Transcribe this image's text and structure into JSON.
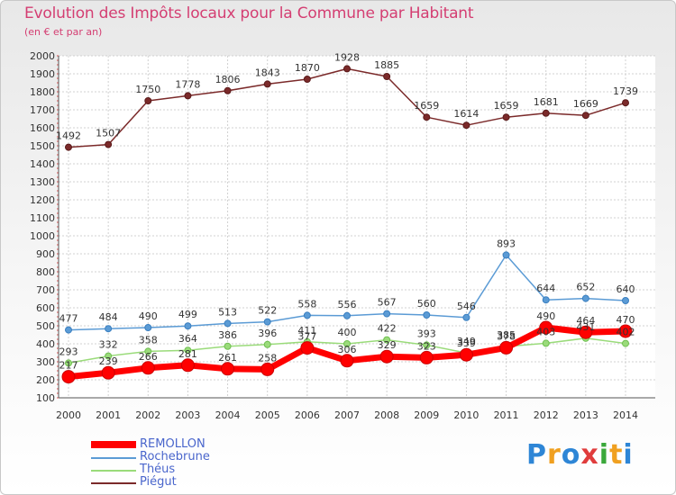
{
  "chart_data": {
    "type": "line",
    "title": "Evolution des Impôts locaux pour la Commune par Habitant",
    "subtitle": "(en € et par an)",
    "x": [
      "2000",
      "2001",
      "2002",
      "2003",
      "2004",
      "2005",
      "2006",
      "2007",
      "2008",
      "2009",
      "2010",
      "2011",
      "2012",
      "2013",
      "2014"
    ],
    "ylim": [
      100,
      2000
    ],
    "yticks": [
      100,
      200,
      300,
      400,
      500,
      600,
      700,
      800,
      900,
      1000,
      1100,
      1200,
      1300,
      1400,
      1500,
      1600,
      1700,
      1800,
      1900,
      2000
    ],
    "series": [
      {
        "name": "REMOLLON",
        "color": "#ff0000",
        "values": [
          217,
          239,
          266,
          281,
          261,
          258,
          377,
          306,
          329,
          323,
          339,
          378,
          490,
          464,
          470
        ]
      },
      {
        "name": "Rochebrune",
        "color": "#5b9bd5",
        "values": [
          477,
          484,
          490,
          499,
          513,
          522,
          558,
          556,
          567,
          560,
          546,
          893,
          644,
          652,
          640
        ]
      },
      {
        "name": "Théus",
        "color": "#9adb7a",
        "values": [
          293,
          332,
          358,
          364,
          386,
          396,
          411,
          400,
          422,
          393,
          349,
          385,
          403,
          431,
          402
        ]
      },
      {
        "name": "Piégut",
        "color": "#7b2a2a",
        "values": [
          1492,
          1507,
          1750,
          1778,
          1806,
          1843,
          1870,
          1928,
          1885,
          1659,
          1614,
          1659,
          1681,
          1669,
          1739
        ]
      }
    ]
  },
  "logo": {
    "text": "Proxiti",
    "letters": [
      "P",
      "r",
      "o",
      "x",
      "i",
      "t",
      "i"
    ],
    "colors": [
      "#2e86d6",
      "#f0a020",
      "#2e86d6",
      "#e03c3c",
      "#3aa83a",
      "#f0a020",
      "#2e86d6"
    ]
  }
}
